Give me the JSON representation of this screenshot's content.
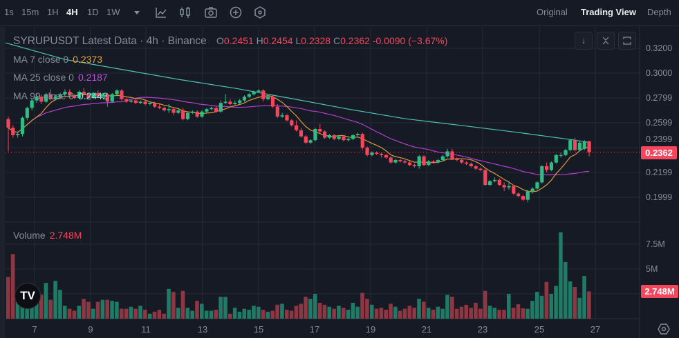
{
  "toolbar": {
    "timeframes": [
      "1s",
      "15m",
      "1H",
      "4H",
      "1D",
      "1W"
    ],
    "active_timeframe": "4H",
    "icons": [
      "dropdown-caret-icon",
      "indicators-icon",
      "candle-type-icon",
      "camera-icon",
      "add-icon",
      "settings-hex-icon"
    ],
    "views": [
      "Original",
      "Trading View",
      "Depth"
    ],
    "active_view": "Trading View"
  },
  "legend": {
    "title": "SYRUPUSDT Latest Data · 4h · Binance",
    "o_label": "O",
    "o": "0.2451",
    "h_label": "H",
    "h": "0.2454",
    "l_label": "L",
    "l": "0.2328",
    "c_label": "C",
    "c": "0.2362",
    "change": "-0.0090 (−3.67%)",
    "ma7_label": "MA 7 close 0",
    "ma7": "0.2373",
    "ma25_label": "MA 25 close 0",
    "ma25": "0.2187",
    "ma99_label": "MA 99 close 0",
    "ma99": "0.2442",
    "volume_label": "Volume",
    "volume": "2.748M"
  },
  "pane_buttons": [
    "scroll-down-icon",
    "collapse-icon",
    "fullscreen-icon"
  ],
  "price_axis": [
    "0.3200",
    "0.3000",
    "0.2799",
    "0.2599",
    "0.2399",
    "0.2199",
    "0.1999"
  ],
  "volume_axis": [
    "7.5M",
    "5M"
  ],
  "last_price_badge": "0.2362",
  "last_volume_badge": "2.748M",
  "time_axis": [
    "7",
    "9",
    "11",
    "13",
    "15",
    "17",
    "19",
    "21",
    "23",
    "25",
    "27"
  ],
  "logo_text": "TV",
  "colors": {
    "up": "#2ebd85",
    "down": "#f6465d",
    "up_volume": "#1f7a66",
    "down_volume": "#8e3743",
    "ma7": "#d89b3c",
    "ma25": "#b43ed0",
    "ma99": "#4fc2b6",
    "background": "#161a24"
  },
  "chart_data": {
    "type": "candlestick",
    "symbol": "SYRUPUSDT",
    "interval": "4h",
    "ylim": [
      0.19,
      0.325
    ],
    "volume_unit": "M",
    "candles_ohlcv": [
      [
        0.263,
        0.265,
        0.237,
        0.256,
        4.2
      ],
      [
        0.256,
        0.258,
        0.248,
        0.25,
        6.5
      ],
      [
        0.25,
        0.253,
        0.248,
        0.251,
        2.6
      ],
      [
        0.251,
        0.265,
        0.249,
        0.264,
        2.4
      ],
      [
        0.264,
        0.273,
        0.262,
        0.272,
        2.6
      ],
      [
        0.272,
        0.279,
        0.27,
        0.278,
        2.5
      ],
      [
        0.278,
        0.283,
        0.276,
        0.281,
        2.6
      ],
      [
        0.281,
        0.283,
        0.275,
        0.277,
        2.4
      ],
      [
        0.277,
        0.284,
        0.276,
        0.283,
        3.6
      ],
      [
        0.283,
        0.287,
        0.278,
        0.279,
        1.9
      ],
      [
        0.279,
        0.283,
        0.278,
        0.281,
        3.8
      ],
      [
        0.281,
        0.284,
        0.279,
        0.283,
        2.9
      ],
      [
        0.283,
        0.287,
        0.282,
        0.285,
        1.3
      ],
      [
        0.285,
        0.287,
        0.281,
        0.282,
        1.0
      ],
      [
        0.282,
        0.283,
        0.279,
        0.28,
        0.8
      ],
      [
        0.28,
        0.286,
        0.279,
        0.285,
        1.3
      ],
      [
        0.285,
        0.288,
        0.282,
        0.283,
        2.0
      ],
      [
        0.283,
        0.284,
        0.279,
        0.28,
        1.7
      ],
      [
        0.28,
        0.285,
        0.279,
        0.284,
        1.0
      ],
      [
        0.284,
        0.286,
        0.28,
        0.281,
        1.7
      ],
      [
        0.281,
        0.284,
        0.28,
        0.283,
        1.9
      ],
      [
        0.283,
        0.284,
        0.273,
        0.277,
        1.9
      ],
      [
        0.277,
        0.284,
        0.276,
        0.283,
        1.8
      ],
      [
        0.283,
        0.287,
        0.282,
        0.286,
        1.7
      ],
      [
        0.286,
        0.287,
        0.278,
        0.279,
        1.0
      ],
      [
        0.279,
        0.28,
        0.276,
        0.277,
        1.0
      ],
      [
        0.277,
        0.279,
        0.276,
        0.278,
        1.2
      ],
      [
        0.278,
        0.279,
        0.275,
        0.276,
        1.0
      ],
      [
        0.276,
        0.278,
        0.275,
        0.277,
        1.3
      ],
      [
        0.277,
        0.278,
        0.274,
        0.275,
        0.9
      ],
      [
        0.275,
        0.277,
        0.274,
        0.276,
        0.5
      ],
      [
        0.276,
        0.277,
        0.272,
        0.273,
        0.7
      ],
      [
        0.273,
        0.275,
        0.271,
        0.272,
        0.9
      ],
      [
        0.272,
        0.273,
        0.269,
        0.27,
        0.5
      ],
      [
        0.27,
        0.275,
        0.268,
        0.271,
        3.0
      ],
      [
        0.271,
        0.272,
        0.266,
        0.268,
        2.7
      ],
      [
        0.268,
        0.271,
        0.267,
        0.27,
        1.1
      ],
      [
        0.27,
        0.272,
        0.262,
        0.263,
        2.8
      ],
      [
        0.263,
        0.269,
        0.262,
        0.268,
        1.1
      ],
      [
        0.268,
        0.27,
        0.267,
        0.269,
        0.8
      ],
      [
        0.269,
        0.27,
        0.264,
        0.265,
        1.8
      ],
      [
        0.265,
        0.27,
        0.264,
        0.269,
        1.5
      ],
      [
        0.269,
        0.272,
        0.268,
        0.271,
        0.8
      ],
      [
        0.271,
        0.273,
        0.27,
        0.272,
        0.8
      ],
      [
        0.272,
        0.273,
        0.268,
        0.269,
        0.9
      ],
      [
        0.269,
        0.278,
        0.268,
        0.276,
        2.2
      ],
      [
        0.276,
        0.283,
        0.275,
        0.277,
        2.2
      ],
      [
        0.277,
        0.279,
        0.274,
        0.275,
        0.5
      ],
      [
        0.275,
        0.278,
        0.274,
        0.276,
        1.1
      ],
      [
        0.276,
        0.279,
        0.275,
        0.278,
        0.7
      ],
      [
        0.278,
        0.282,
        0.277,
        0.281,
        1.0
      ],
      [
        0.281,
        0.284,
        0.28,
        0.283,
        0.9
      ],
      [
        0.283,
        0.286,
        0.282,
        0.285,
        1.3
      ],
      [
        0.285,
        0.287,
        0.284,
        0.286,
        1.2
      ],
      [
        0.286,
        0.287,
        0.277,
        0.279,
        0.9
      ],
      [
        0.279,
        0.282,
        0.278,
        0.281,
        0.7
      ],
      [
        0.281,
        0.282,
        0.272,
        0.273,
        0.8
      ],
      [
        0.273,
        0.275,
        0.264,
        0.265,
        1.4
      ],
      [
        0.265,
        0.268,
        0.264,
        0.266,
        1.5
      ],
      [
        0.266,
        0.267,
        0.261,
        0.262,
        0.9
      ],
      [
        0.262,
        0.263,
        0.257,
        0.258,
        0.8
      ],
      [
        0.258,
        0.262,
        0.253,
        0.254,
        1.3
      ],
      [
        0.254,
        0.256,
        0.248,
        0.249,
        1.5
      ],
      [
        0.249,
        0.25,
        0.243,
        0.244,
        2.2
      ],
      [
        0.244,
        0.247,
        0.243,
        0.246,
        2.0
      ],
      [
        0.246,
        0.256,
        0.245,
        0.255,
        2.5
      ],
      [
        0.255,
        0.259,
        0.251,
        0.253,
        1.6
      ],
      [
        0.253,
        0.254,
        0.247,
        0.248,
        1.4
      ],
      [
        0.248,
        0.251,
        0.247,
        0.25,
        1.2
      ],
      [
        0.25,
        0.251,
        0.246,
        0.247,
        1.0
      ],
      [
        0.247,
        0.25,
        0.246,
        0.249,
        1.3
      ],
      [
        0.249,
        0.25,
        0.245,
        0.246,
        1.1
      ],
      [
        0.246,
        0.248,
        0.245,
        0.247,
        0.9
      ],
      [
        0.247,
        0.251,
        0.246,
        0.25,
        1.6
      ],
      [
        0.25,
        0.252,
        0.249,
        0.251,
        1.2
      ],
      [
        0.251,
        0.252,
        0.238,
        0.24,
        2.6
      ],
      [
        0.24,
        0.241,
        0.233,
        0.234,
        2.0
      ],
      [
        0.234,
        0.237,
        0.233,
        0.236,
        1.4
      ],
      [
        0.236,
        0.237,
        0.234,
        0.235,
        1.0
      ],
      [
        0.235,
        0.236,
        0.232,
        0.234,
        1.1
      ],
      [
        0.234,
        0.235,
        0.231,
        0.232,
        0.9
      ],
      [
        0.232,
        0.233,
        0.227,
        0.228,
        1.5
      ],
      [
        0.228,
        0.231,
        0.227,
        0.23,
        1.2
      ],
      [
        0.23,
        0.231,
        0.228,
        0.229,
        0.8
      ],
      [
        0.229,
        0.23,
        0.227,
        0.228,
        1.0
      ],
      [
        0.228,
        0.229,
        0.225,
        0.226,
        1.3
      ],
      [
        0.226,
        0.227,
        0.224,
        0.225,
        1.1
      ],
      [
        0.225,
        0.234,
        0.223,
        0.233,
        2.0
      ],
      [
        0.233,
        0.234,
        0.225,
        0.226,
        1.7
      ],
      [
        0.226,
        0.23,
        0.225,
        0.229,
        1.1
      ],
      [
        0.229,
        0.23,
        0.227,
        0.228,
        0.9
      ],
      [
        0.228,
        0.231,
        0.227,
        0.23,
        1.2
      ],
      [
        0.23,
        0.234,
        0.229,
        0.233,
        1.0
      ],
      [
        0.233,
        0.239,
        0.232,
        0.237,
        2.4
      ],
      [
        0.237,
        0.239,
        0.23,
        0.231,
        2.2
      ],
      [
        0.231,
        0.232,
        0.229,
        0.23,
        1.0
      ],
      [
        0.23,
        0.231,
        0.227,
        0.228,
        1.2
      ],
      [
        0.228,
        0.229,
        0.226,
        0.227,
        1.4
      ],
      [
        0.227,
        0.228,
        0.224,
        0.225,
        1.1
      ],
      [
        0.225,
        0.226,
        0.222,
        0.223,
        1.6
      ],
      [
        0.223,
        0.224,
        0.221,
        0.222,
        1.0
      ],
      [
        0.222,
        0.223,
        0.209,
        0.21,
        2.8
      ],
      [
        0.21,
        0.214,
        0.209,
        0.213,
        1.3
      ],
      [
        0.213,
        0.216,
        0.212,
        0.214,
        1.1
      ],
      [
        0.214,
        0.215,
        0.209,
        0.21,
        0.9
      ],
      [
        0.21,
        0.212,
        0.205,
        0.208,
        0.9
      ],
      [
        0.208,
        0.213,
        0.206,
        0.209,
        2.5
      ],
      [
        0.209,
        0.21,
        0.202,
        0.203,
        1.1
      ],
      [
        0.203,
        0.204,
        0.2,
        0.201,
        1.45
      ],
      [
        0.201,
        0.202,
        0.197,
        0.198,
        1.05
      ],
      [
        0.198,
        0.206,
        0.196,
        0.205,
        1.0
      ],
      [
        0.205,
        0.208,
        0.203,
        0.207,
        1.8
      ],
      [
        0.207,
        0.213,
        0.206,
        0.212,
        2.7
      ],
      [
        0.212,
        0.226,
        0.211,
        0.225,
        2.3
      ],
      [
        0.225,
        0.228,
        0.22,
        0.222,
        3.7
      ],
      [
        0.222,
        0.229,
        0.221,
        0.228,
        2.5
      ],
      [
        0.228,
        0.235,
        0.227,
        0.234,
        3.3
      ],
      [
        0.234,
        0.236,
        0.232,
        0.234,
        8.7
      ],
      [
        0.234,
        0.239,
        0.233,
        0.238,
        5.7
      ],
      [
        0.238,
        0.247,
        0.237,
        0.246,
        3.75
      ],
      [
        0.246,
        0.248,
        0.237,
        0.238,
        3.2
      ],
      [
        0.238,
        0.245,
        0.237,
        0.244,
        2.1
      ],
      [
        0.239,
        0.246,
        0.238,
        0.2451,
        4.3
      ],
      [
        0.2451,
        0.2454,
        0.2328,
        0.2362,
        2.748
      ]
    ],
    "ma99_every_12_candles": [
      0.3244,
      0.311,
      0.303,
      0.295,
      0.2878,
      0.2795,
      0.271,
      0.2633,
      0.2578,
      0.2522,
      0.246
    ],
    "ma99_last": 0.2442,
    "last_price": 0.2362
  }
}
